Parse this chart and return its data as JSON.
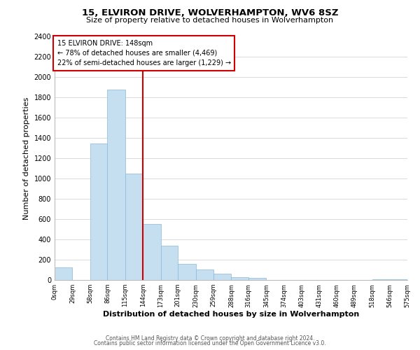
{
  "title": "15, ELVIRON DRIVE, WOLVERHAMPTON, WV6 8SZ",
  "subtitle": "Size of property relative to detached houses in Wolverhampton",
  "xlabel": "Distribution of detached houses by size in Wolverhampton",
  "ylabel": "Number of detached properties",
  "bar_left_edges": [
    0,
    29,
    58,
    86,
    115,
    144,
    173,
    201,
    230,
    259,
    288,
    316,
    345,
    374,
    403,
    431,
    460,
    489,
    518,
    546
  ],
  "bar_widths": [
    29,
    29,
    28,
    29,
    29,
    29,
    28,
    29,
    29,
    29,
    28,
    29,
    29,
    29,
    28,
    29,
    29,
    29,
    28,
    29
  ],
  "bar_heights": [
    125,
    0,
    1350,
    1880,
    1050,
    550,
    335,
    160,
    105,
    60,
    30,
    20,
    0,
    0,
    0,
    0,
    0,
    0,
    10,
    5
  ],
  "bar_color": "#c6dff0",
  "bar_edge_color": "#8ab8d8",
  "tick_labels": [
    "0sqm",
    "29sqm",
    "58sqm",
    "86sqm",
    "115sqm",
    "144sqm",
    "173sqm",
    "201sqm",
    "230sqm",
    "259sqm",
    "288sqm",
    "316sqm",
    "345sqm",
    "374sqm",
    "403sqm",
    "431sqm",
    "460sqm",
    "489sqm",
    "518sqm",
    "546sqm",
    "575sqm"
  ],
  "vline_x": 144,
  "vline_color": "#cc0000",
  "annotation_title": "15 ELVIRON DRIVE: 148sqm",
  "annotation_line1": "← 78% of detached houses are smaller (4,469)",
  "annotation_line2": "22% of semi-detached houses are larger (1,229) →",
  "annotation_box_color": "#ffffff",
  "annotation_box_edge": "#cc0000",
  "ylim": [
    0,
    2400
  ],
  "yticks": [
    0,
    200,
    400,
    600,
    800,
    1000,
    1200,
    1400,
    1600,
    1800,
    2000,
    2200,
    2400
  ],
  "footer1": "Contains HM Land Registry data © Crown copyright and database right 2024.",
  "footer2": "Contains public sector information licensed under the Open Government Licence v3.0.",
  "background_color": "#ffffff",
  "grid_color": "#cccccc"
}
